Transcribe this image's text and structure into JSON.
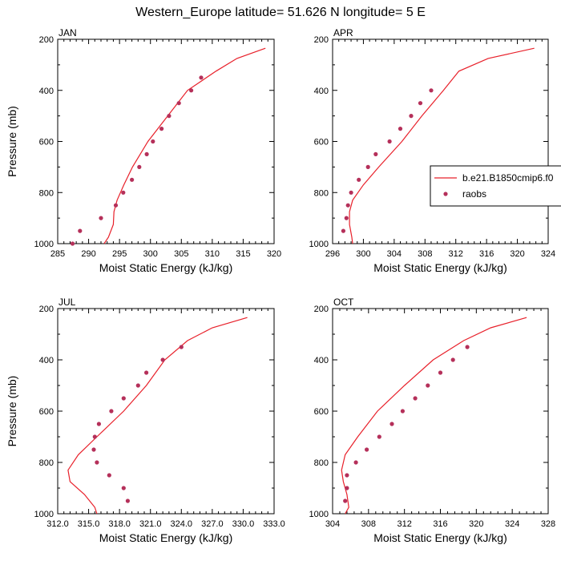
{
  "title": "Western_Europe  latitude= 51.626 N longitude= 5 E",
  "colors": {
    "model": "#e8202a",
    "obs": "#b5305a"
  },
  "legend": {
    "placement": "right-middle",
    "entries": [
      "b.e21.B1850cmip6.f0",
      "raobs"
    ]
  },
  "chart_data": [
    {
      "type": "line",
      "panel": "JAN",
      "xlabel": "Moist Static Energy (kJ/kg)",
      "ylabel": "Pressure (mb)",
      "xlim": [
        285,
        320
      ],
      "xticks": [
        "285",
        "290",
        "295",
        "300",
        "305",
        "310",
        "315",
        "320"
      ],
      "ylim": [
        1000,
        200
      ],
      "yticks": [
        "200",
        "400",
        "600",
        "800",
        "1000"
      ],
      "series": [
        {
          "name": "b.e21.B1850cmip6.f0",
          "style": "line",
          "x": [
            318.6,
            314.0,
            310.6,
            306.0,
            302.8,
            299.6,
            297.1,
            295.7,
            294.6,
            294.1,
            294.0,
            293.2,
            292.5
          ],
          "y": [
            235,
            275,
            325,
            400,
            500,
            600,
            700,
            770,
            830,
            875,
            925,
            975,
            1000
          ]
        },
        {
          "name": "raobs",
          "style": "marker",
          "x": [
            308.2,
            306.6,
            304.6,
            303.0,
            301.8,
            300.4,
            299.4,
            298.2,
            297.0,
            295.6,
            294.4,
            292.0,
            288.6,
            287.4
          ],
          "y": [
            350,
            400,
            450,
            500,
            550,
            600,
            650,
            700,
            750,
            800,
            850,
            900,
            950,
            1000
          ]
        }
      ]
    },
    {
      "type": "line",
      "panel": "APR",
      "xlabel": "Moist Static Energy (kJ/kg)",
      "ylabel": "",
      "xlim": [
        296,
        324
      ],
      "xticks": [
        "296",
        "300",
        "304",
        "308",
        "312",
        "316",
        "320",
        "324"
      ],
      "ylim": [
        1000,
        200
      ],
      "yticks": [
        "200",
        "400",
        "600",
        "800",
        "1000"
      ],
      "series": [
        {
          "name": "b.e21.B1850cmip6.f0",
          "style": "line",
          "x": [
            322.2,
            316.2,
            312.4,
            310.4,
            307.6,
            305.0,
            302.0,
            300.0,
            298.6,
            298.2,
            298.2,
            298.5,
            298.6
          ],
          "y": [
            235,
            275,
            325,
            400,
            500,
            600,
            700,
            770,
            830,
            875,
            925,
            975,
            1000
          ]
        },
        {
          "name": "raobs",
          "style": "marker",
          "x": [
            308.8,
            307.4,
            306.2,
            304.8,
            303.4,
            301.6,
            300.6,
            299.4,
            298.4,
            298.0,
            297.8,
            297.4
          ],
          "y": [
            400,
            450,
            500,
            550,
            600,
            650,
            700,
            750,
            800,
            850,
            900,
            950
          ]
        }
      ]
    },
    {
      "type": "line",
      "panel": "JUL",
      "xlabel": "Moist Static Energy (kJ/kg)",
      "ylabel": "Pressure (mb)",
      "xlim": [
        312,
        333
      ],
      "xticks": [
        "312.0",
        "315.0",
        "318.0",
        "321.0",
        "324.0",
        "327.0",
        "330.0",
        "333.0"
      ],
      "ylim": [
        1000,
        200
      ],
      "yticks": [
        "200",
        "400",
        "600",
        "800",
        "1000"
      ],
      "series": [
        {
          "name": "b.e21.B1850cmip6.f0",
          "style": "line",
          "x": [
            330.4,
            327.0,
            324.6,
            322.4,
            320.6,
            318.4,
            315.8,
            314.0,
            313.0,
            313.2,
            314.6,
            315.6,
            315.8
          ],
          "y": [
            235,
            275,
            325,
            400,
            500,
            600,
            700,
            770,
            830,
            875,
            925,
            975,
            1000
          ]
        },
        {
          "name": "raobs",
          "style": "marker",
          "x": [
            324.0,
            322.2,
            320.6,
            319.8,
            318.4,
            317.2,
            316.0,
            315.6,
            315.5,
            315.8,
            317.0,
            318.4,
            318.8
          ],
          "y": [
            350,
            400,
            450,
            500,
            550,
            600,
            650,
            700,
            750,
            800,
            850,
            900,
            950
          ]
        }
      ]
    },
    {
      "type": "line",
      "panel": "OCT",
      "xlabel": "Moist Static Energy (kJ/kg)",
      "ylabel": "",
      "xlim": [
        304,
        328
      ],
      "xticks": [
        "304",
        "308",
        "312",
        "316",
        "320",
        "324",
        "328"
      ],
      "ylim": [
        1000,
        200
      ],
      "yticks": [
        "200",
        "400",
        "600",
        "800",
        "1000"
      ],
      "series": [
        {
          "name": "b.e21.B1850cmip6.f0",
          "style": "line",
          "x": [
            325.6,
            321.6,
            318.6,
            315.2,
            312.0,
            309.0,
            306.8,
            305.4,
            305.0,
            305.2,
            305.6,
            305.8,
            305.4
          ],
          "y": [
            235,
            275,
            325,
            400,
            500,
            600,
            700,
            770,
            830,
            875,
            925,
            975,
            1000
          ]
        },
        {
          "name": "raobs",
          "style": "marker",
          "x": [
            319.0,
            317.4,
            316.0,
            314.6,
            313.2,
            311.8,
            310.6,
            309.2,
            307.8,
            306.6,
            305.6,
            305.6,
            305.4
          ],
          "y": [
            350,
            400,
            450,
            500,
            550,
            600,
            650,
            700,
            750,
            800,
            850,
            900,
            950
          ]
        }
      ]
    }
  ]
}
